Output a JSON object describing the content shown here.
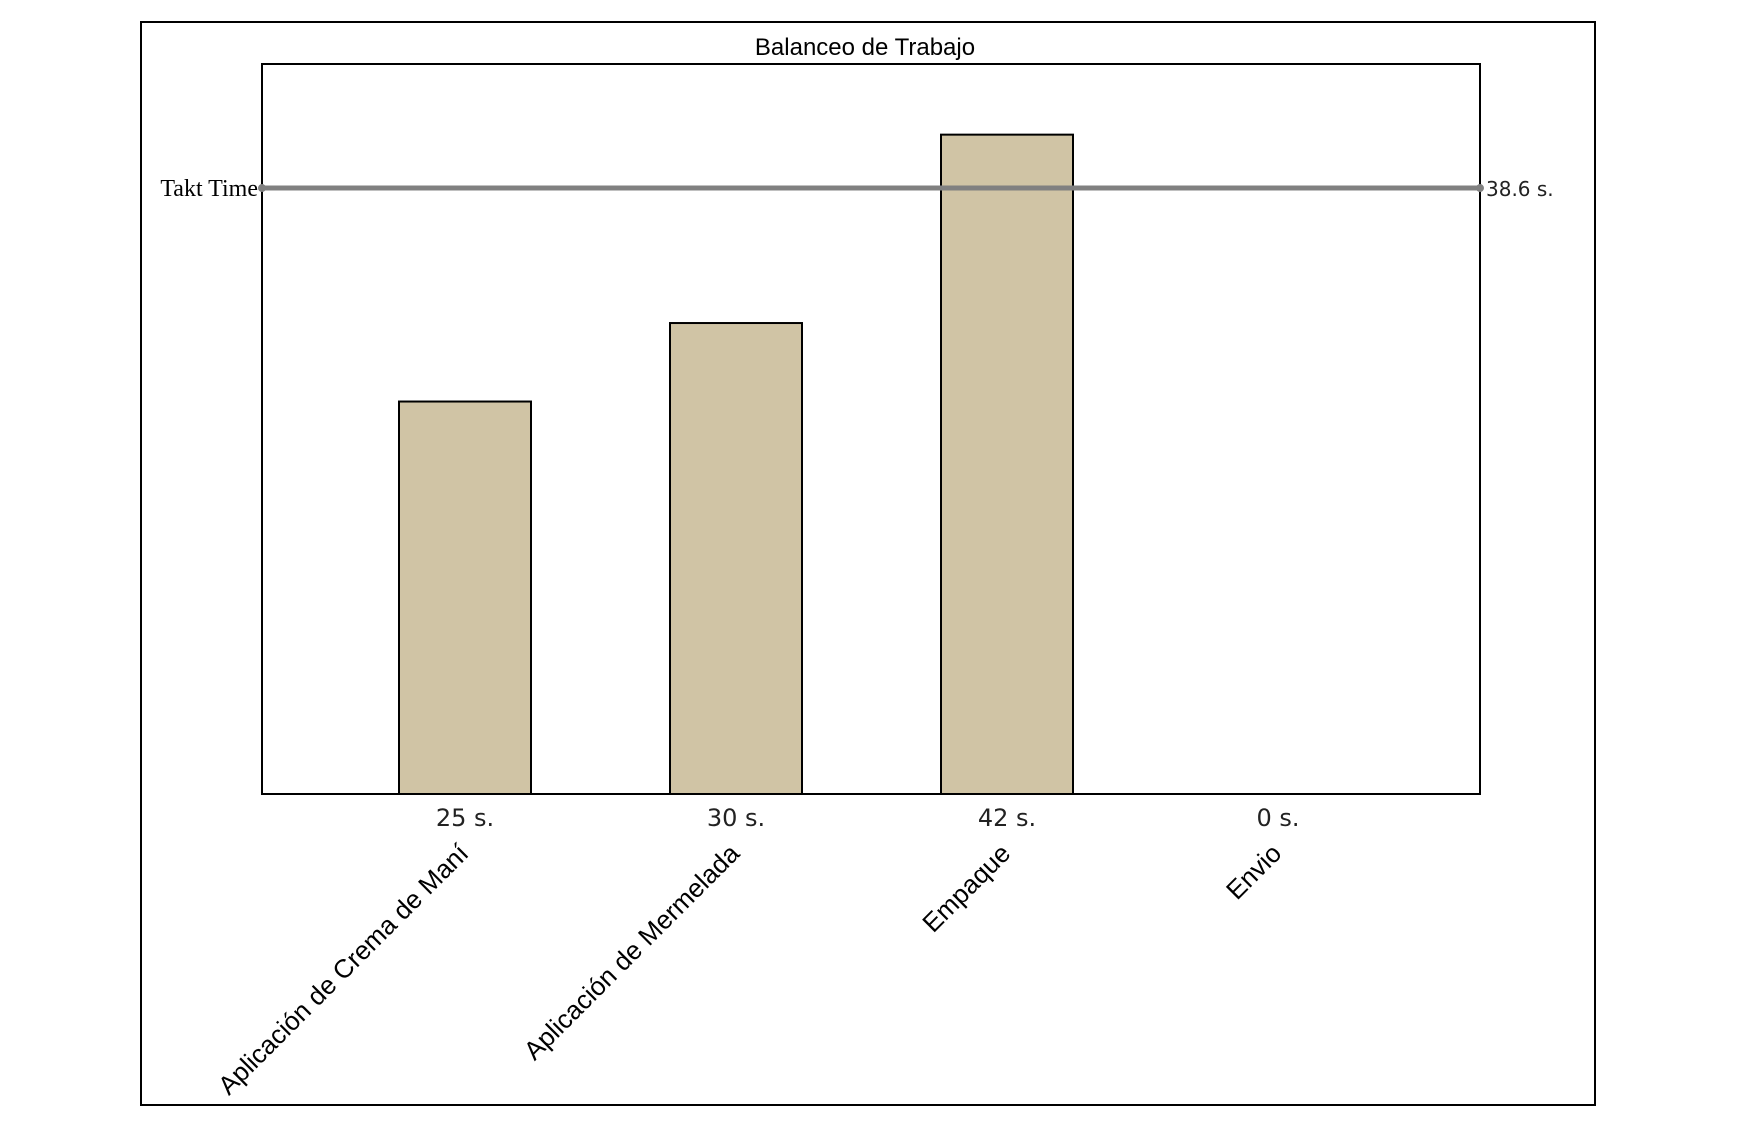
{
  "chart_data": {
    "type": "bar",
    "title": "Balanceo de Trabajo",
    "xlabel": "",
    "ylabel": "",
    "categories": [
      "Aplicación de Crema de Maní",
      "Aplicación de Mermelada",
      "Empaque",
      "Envio"
    ],
    "values": [
      25,
      30,
      42,
      0
    ],
    "value_labels": [
      "25 s.",
      "30 s.",
      "42 s.",
      "0 s."
    ],
    "ylim": [
      0,
      46.5
    ],
    "grid": false,
    "bar_color": "#d0c4a5",
    "reference_line": {
      "label": "Takt Time",
      "value": 38.6,
      "value_label": "38.6 s.",
      "color": "#808080"
    }
  }
}
